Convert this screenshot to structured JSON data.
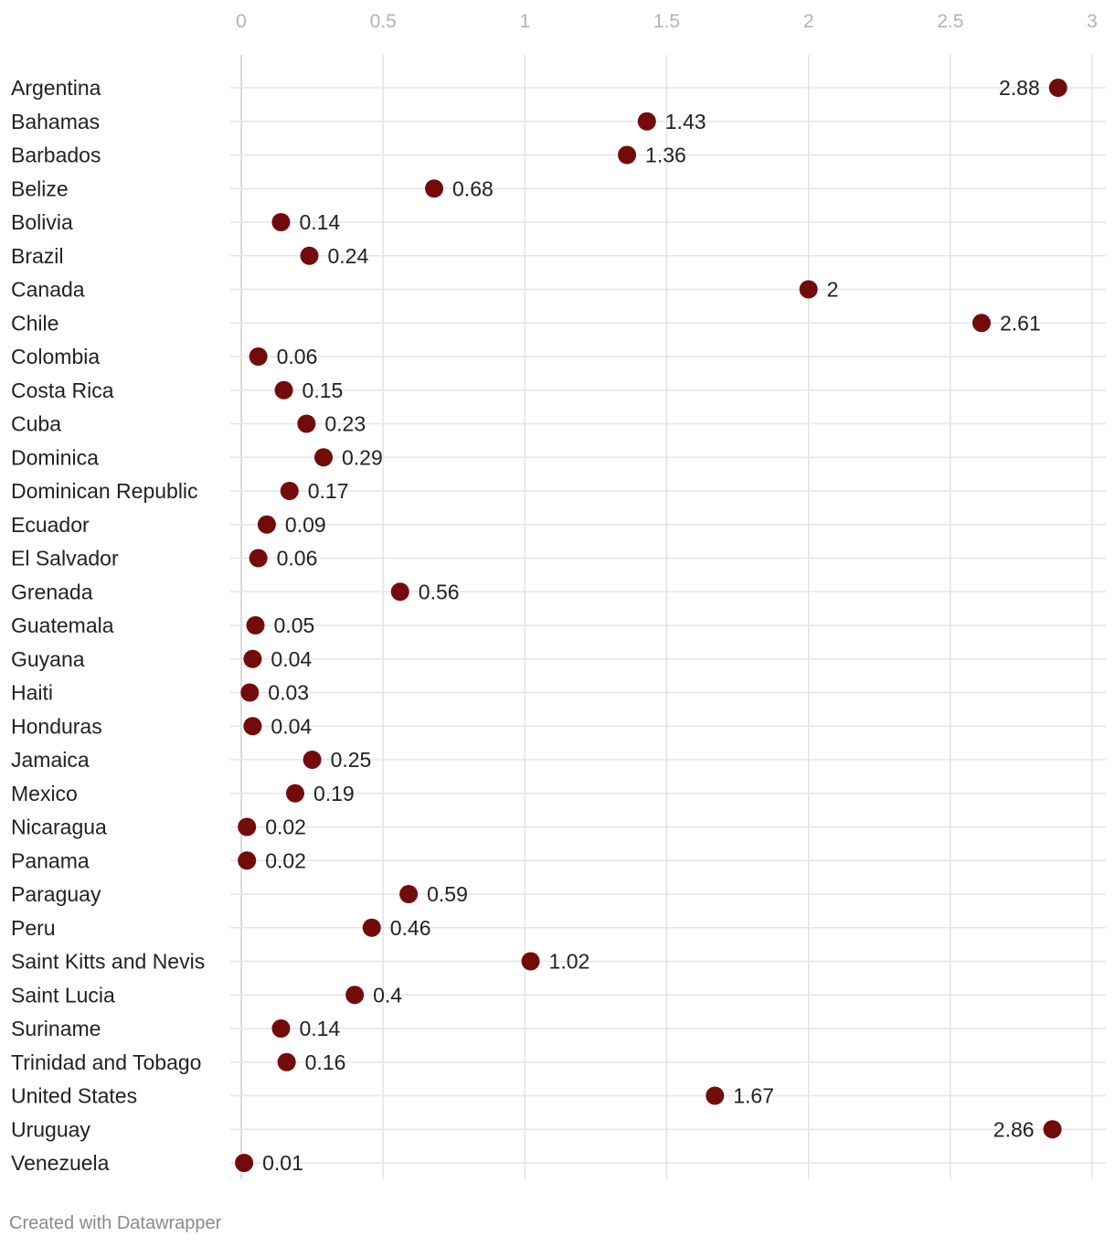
{
  "chart_data": {
    "type": "scatter",
    "title": "",
    "xlabel": "",
    "ylabel": "",
    "xlim": [
      0,
      3
    ],
    "xticks": [
      "0",
      "0.5",
      "1",
      "1.5",
      "2",
      "2.5",
      "3"
    ],
    "grid": true,
    "dot_color": "#740b0b",
    "categories": [
      "Argentina",
      "Bahamas",
      "Barbados",
      "Belize",
      "Bolivia",
      "Brazil",
      "Canada",
      "Chile",
      "Colombia",
      "Costa Rica",
      "Cuba",
      "Dominica",
      "Dominican Republic",
      "Ecuador",
      "El Salvador",
      "Grenada",
      "Guatemala",
      "Guyana",
      "Haiti",
      "Honduras",
      "Jamaica",
      "Mexico",
      "Nicaragua",
      "Panama",
      "Paraguay",
      "Peru",
      "Saint Kitts and Nevis",
      "Saint Lucia",
      "Suriname",
      "Trinidad and Tobago",
      "United States",
      "Uruguay",
      "Venezuela"
    ],
    "values": [
      2.88,
      1.43,
      1.36,
      0.68,
      0.14,
      0.24,
      2,
      2.61,
      0.06,
      0.15,
      0.23,
      0.29,
      0.17,
      0.09,
      0.06,
      0.56,
      0.05,
      0.04,
      0.03,
      0.04,
      0.25,
      0.19,
      0.02,
      0.02,
      0.59,
      0.46,
      1.02,
      0.4,
      0.14,
      0.16,
      1.67,
      2.86,
      0.01
    ]
  },
  "footer": {
    "credit": "Created with Datawrapper"
  }
}
